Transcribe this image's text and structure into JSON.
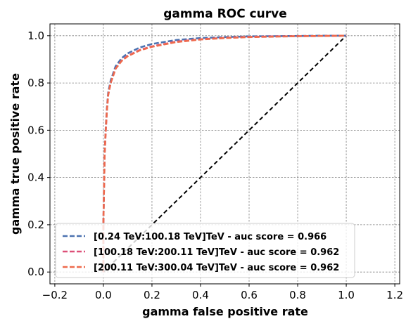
{
  "chart_data": {
    "type": "line",
    "title": "gamma ROC curve",
    "xlabel": "gamma false positive rate",
    "ylabel": "gamma true positive rate",
    "xlim": [
      -0.22,
      1.22
    ],
    "ylim": [
      -0.05,
      1.05
    ],
    "xticks": [
      -0.2,
      0.0,
      0.2,
      0.4,
      0.6,
      0.8,
      1.0,
      1.2
    ],
    "xtick_labels": [
      "−0.2",
      "0.0",
      "0.2",
      "0.4",
      "0.6",
      "0.8",
      "1.0",
      "1.2"
    ],
    "yticks": [
      0.0,
      0.2,
      0.4,
      0.6,
      0.8,
      1.0
    ],
    "ytick_labels": [
      "0.0",
      "0.2",
      "0.4",
      "0.6",
      "0.8",
      "1.0"
    ],
    "grid": true,
    "legend_position": "lower-left",
    "diagonal": {
      "x": [
        0,
        1
      ],
      "y": [
        0,
        1
      ],
      "color": "#000000",
      "style": "dashed"
    },
    "series": [
      {
        "name": "[0.24 TeV:100.18 TeV]TeV - auc score = 0.966",
        "color": "#4c72b0",
        "x": [
          0.0,
          0.0,
          0.005,
          0.01,
          0.015,
          0.02,
          0.03,
          0.05,
          0.075,
          0.1,
          0.15,
          0.2,
          0.3,
          0.4,
          0.5,
          0.6,
          0.7,
          0.8,
          0.9,
          1.0
        ],
        "y": [
          0.0,
          0.2,
          0.5,
          0.62,
          0.7,
          0.76,
          0.81,
          0.87,
          0.905,
          0.925,
          0.95,
          0.965,
          0.982,
          0.99,
          0.994,
          0.997,
          0.998,
          0.999,
          1.0,
          1.0
        ]
      },
      {
        "name": "[100.18 TeV:200.11 TeV]TeV - auc score = 0.962",
        "color": "#dd5078",
        "x": [
          0.0,
          0.0,
          0.005,
          0.01,
          0.015,
          0.02,
          0.03,
          0.05,
          0.075,
          0.1,
          0.15,
          0.2,
          0.3,
          0.4,
          0.5,
          0.6,
          0.7,
          0.8,
          0.9,
          1.0
        ],
        "y": [
          0.0,
          0.2,
          0.5,
          0.6,
          0.69,
          0.75,
          0.8,
          0.86,
          0.895,
          0.915,
          0.94,
          0.955,
          0.975,
          0.985,
          0.991,
          0.995,
          0.997,
          0.998,
          0.999,
          1.0
        ]
      },
      {
        "name": "[200.11 TeV:300.04 TeV]TeV - auc score = 0.962",
        "color": "#ee6a4c",
        "x": [
          0.0,
          0.0,
          0.005,
          0.01,
          0.015,
          0.02,
          0.03,
          0.05,
          0.075,
          0.1,
          0.15,
          0.2,
          0.3,
          0.4,
          0.5,
          0.6,
          0.7,
          0.8,
          0.9,
          1.0
        ],
        "y": [
          0.0,
          0.2,
          0.5,
          0.61,
          0.69,
          0.75,
          0.8,
          0.86,
          0.893,
          0.913,
          0.938,
          0.953,
          0.973,
          0.984,
          0.99,
          0.994,
          0.996,
          0.998,
          0.999,
          1.0
        ]
      }
    ]
  }
}
